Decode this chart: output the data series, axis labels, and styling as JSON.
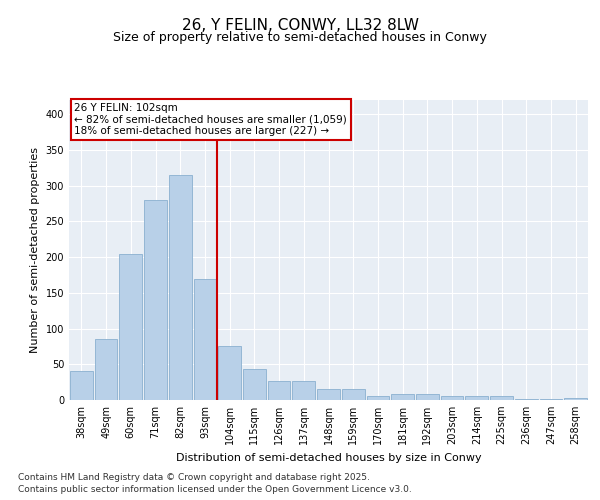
{
  "title": "26, Y FELIN, CONWY, LL32 8LW",
  "subtitle": "Size of property relative to semi-detached houses in Conwy",
  "xlabel": "Distribution of semi-detached houses by size in Conwy",
  "ylabel": "Number of semi-detached properties",
  "categories": [
    "38sqm",
    "49sqm",
    "60sqm",
    "71sqm",
    "82sqm",
    "93sqm",
    "104sqm",
    "115sqm",
    "126sqm",
    "137sqm",
    "148sqm",
    "159sqm",
    "170sqm",
    "181sqm",
    "192sqm",
    "203sqm",
    "214sqm",
    "225sqm",
    "236sqm",
    "247sqm",
    "258sqm"
  ],
  "values": [
    40,
    85,
    205,
    280,
    315,
    170,
    75,
    43,
    27,
    27,
    15,
    15,
    6,
    8,
    8,
    5,
    5,
    6,
    2,
    1,
    3
  ],
  "bar_color": "#b8d0e8",
  "bar_edge_color": "#8ab0d0",
  "marker_index": 6,
  "marker_line_color": "#cc0000",
  "marker_box_color": "#cc0000",
  "annotation_line1": "26 Y FELIN: 102sqm",
  "annotation_line2": "← 82% of semi-detached houses are smaller (1,059)",
  "annotation_line3": "18% of semi-detached houses are larger (227) →",
  "ylim": [
    0,
    420
  ],
  "yticks": [
    0,
    50,
    100,
    150,
    200,
    250,
    300,
    350,
    400
  ],
  "footer_line1": "Contains HM Land Registry data © Crown copyright and database right 2025.",
  "footer_line2": "Contains public sector information licensed under the Open Government Licence v3.0.",
  "bg_color": "#ffffff",
  "plot_bg_color": "#e8eef5",
  "title_fontsize": 11,
  "subtitle_fontsize": 9,
  "axis_label_fontsize": 8,
  "tick_fontsize": 7,
  "footer_fontsize": 6.5,
  "annotation_fontsize": 7.5
}
